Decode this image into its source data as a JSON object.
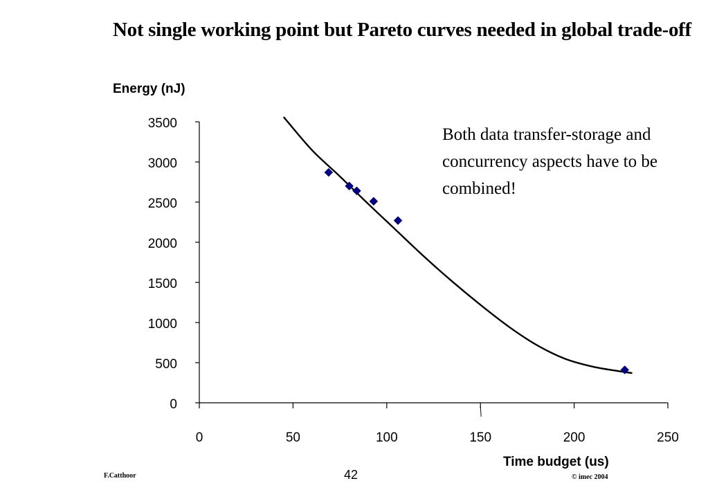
{
  "slide": {
    "title": "Not single working point but Pareto curves needed in global trade-off",
    "note": "Both data transfer-storage and concurrency aspects have to be combined!",
    "footer_left": "F.Catthoor",
    "page_number": "42",
    "footer_right": "© imec 2004"
  },
  "chart_data": {
    "type": "scatter",
    "title": "",
    "xlabel": "Time budget (us)",
    "ylabel": "Energy (nJ)",
    "xlim": [
      0,
      250
    ],
    "ylim": [
      0,
      3500
    ],
    "xticks": [
      "0",
      "50",
      "100",
      "150",
      "200",
      "250"
    ],
    "yticks": [
      "0",
      "500",
      "1000",
      "1500",
      "2000",
      "2500",
      "3000",
      "3500"
    ],
    "grid": false,
    "series": [
      {
        "type": "scatter",
        "marker": "diamond",
        "color": "#000080",
        "x": [
          69,
          80,
          84,
          93,
          106,
          227
        ],
        "y": [
          2870,
          2700,
          2640,
          2510,
          2270,
          410
        ]
      },
      {
        "type": "line",
        "color": "#000000",
        "x": [
          45,
          60,
          75,
          90,
          105,
          120,
          135,
          150,
          165,
          180,
          195,
          210,
          225,
          231
        ],
        "y": [
          3560,
          3150,
          2820,
          2480,
          2150,
          1820,
          1510,
          1220,
          950,
          720,
          550,
          450,
          390,
          370
        ]
      }
    ]
  }
}
